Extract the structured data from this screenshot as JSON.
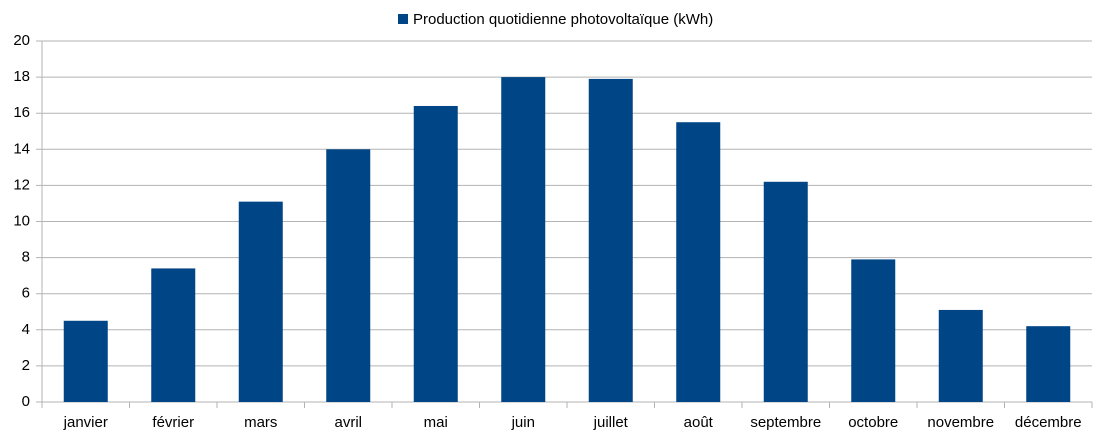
{
  "chart_data": {
    "type": "bar",
    "categories": [
      "janvier",
      "février",
      "mars",
      "avril",
      "mai",
      "juin",
      "juillet",
      "août",
      "septembre",
      "octobre",
      "novembre",
      "décembre"
    ],
    "series": [
      {
        "name": "Production quotidienne photovoltaïque (kWh)",
        "color": "#004586",
        "values": [
          4.5,
          7.4,
          11.1,
          14.0,
          16.4,
          18.0,
          17.9,
          15.5,
          12.2,
          7.9,
          5.1,
          4.2
        ]
      }
    ],
    "ylim": [
      0,
      20
    ],
    "yticks": [
      0,
      2,
      4,
      6,
      8,
      10,
      12,
      14,
      16,
      18,
      20
    ],
    "grid": true,
    "legend": "top"
  }
}
